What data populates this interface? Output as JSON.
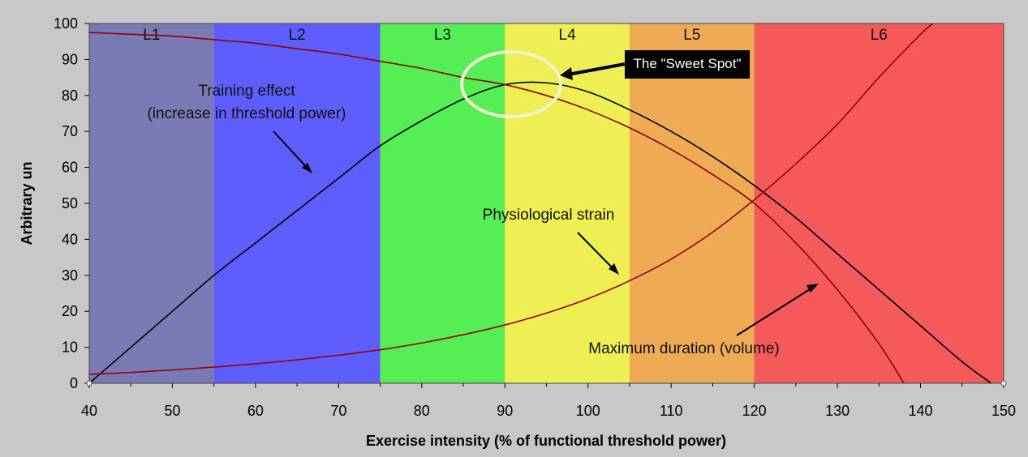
{
  "chart_data": {
    "type": "line",
    "title": "",
    "xlabel": "Exercise intensity (% of functional threshold power)",
    "ylabel": "Arbitrary un",
    "xlim": [
      40,
      150
    ],
    "ylim": [
      0,
      100
    ],
    "x_ticks": [
      40,
      50,
      60,
      70,
      80,
      90,
      100,
      110,
      120,
      130,
      140,
      150
    ],
    "y_ticks": [
      0,
      10,
      20,
      30,
      40,
      50,
      60,
      70,
      80,
      90,
      100
    ],
    "grid": false,
    "zones": [
      {
        "label": "L1",
        "from": 40,
        "to": 55,
        "color": "#7a7ab4"
      },
      {
        "label": "L2",
        "from": 55,
        "to": 75,
        "color": "#5e5eff"
      },
      {
        "label": "L3",
        "from": 75,
        "to": 90,
        "color": "#55ee55"
      },
      {
        "label": "L4",
        "from": 90,
        "to": 105,
        "color": "#eeee55"
      },
      {
        "label": "L5",
        "from": 105,
        "to": 120,
        "color": "#eeaa55"
      },
      {
        "label": "L6",
        "from": 120,
        "to": 150,
        "color": "#f55a5a"
      }
    ],
    "series": [
      {
        "name": "Training effect (increase in threshold power)",
        "color": "#000000",
        "x": [
          40,
          45,
          50,
          55,
          60,
          65,
          70,
          75,
          80,
          85,
          90,
          95,
          100,
          105,
          110,
          115,
          120,
          125,
          130,
          135,
          140,
          145,
          148.5
        ],
        "y": [
          0,
          10,
          20,
          30,
          39,
          48,
          57,
          66,
          73,
          79,
          83,
          83.5,
          81,
          76,
          70,
          63,
          55,
          46,
          36,
          26,
          16,
          6,
          0
        ]
      },
      {
        "name": "Physiological strain",
        "color": "#990000",
        "x": [
          40,
          45,
          50,
          55,
          60,
          65,
          70,
          75,
          80,
          85,
          90,
          95,
          100,
          105,
          110,
          115,
          120,
          125,
          130,
          135,
          140,
          141.5
        ],
        "y": [
          2.5,
          3,
          3.7,
          4.5,
          5.4,
          6.5,
          7.8,
          9.3,
          11.2,
          13.5,
          16.2,
          19.5,
          23.5,
          28.5,
          34.5,
          42,
          51,
          61,
          72,
          85,
          97,
          100
        ]
      },
      {
        "name": "Maximum duration (volume)",
        "color": "#8b0000",
        "x": [
          40,
          45,
          50,
          55,
          60,
          65,
          70,
          75,
          80,
          85,
          90,
          95,
          100,
          105,
          110,
          115,
          120,
          125,
          130,
          135,
          138
        ],
        "y": [
          97.5,
          97,
          96.5,
          95.5,
          94.5,
          93,
          91.5,
          89.5,
          87.5,
          85,
          83,
          80,
          76,
          71,
          65,
          58,
          50,
          39,
          26,
          11,
          0
        ]
      }
    ],
    "annotations": {
      "training_effect": [
        "Training effect",
        "(increase in threshold power)"
      ],
      "strain": "Physiological strain",
      "duration": "Maximum duration (volume)",
      "sweet_spot": "The \"Sweet Spot\""
    }
  }
}
